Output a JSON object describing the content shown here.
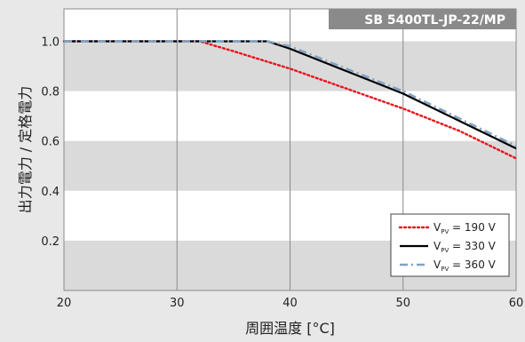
{
  "chart_data": {
    "type": "line",
    "badge": "SB 5400TL-JP-22/MP",
    "xlabel": "周囲温度 [°C]",
    "ylabel": "出力電力 / 定格電力",
    "xlim": [
      20,
      60
    ],
    "ylim": [
      0,
      1.13
    ],
    "x_ticks": [
      20,
      30,
      40,
      50,
      60
    ],
    "x_tick_labels": [
      "20",
      "30",
      "40",
      "50",
      "60"
    ],
    "y_ticks": [
      0.2,
      0.4,
      0.6,
      0.8,
      1.0
    ],
    "y_tick_labels": [
      "0.2",
      "0.4",
      "0.6",
      "0.8",
      "1.0"
    ],
    "grid": "vertical lines at x ticks, alternating horizontal bands",
    "legend_position": "bottom-right",
    "series": [
      {
        "name": "V_PV = 190 V",
        "legend": {
          "prefix": "V",
          "subscript": "PV",
          "suffix": " = 190 V"
        },
        "color": "#e8141c",
        "style": "dotted",
        "x": [
          20,
          32,
          35,
          40,
          45,
          50,
          55,
          60
        ],
        "y": [
          1.0,
          1.0,
          0.96,
          0.89,
          0.81,
          0.73,
          0.64,
          0.53
        ]
      },
      {
        "name": "V_PV = 330 V",
        "legend": {
          "prefix": "V",
          "subscript": "PV",
          "suffix": " = 330 V"
        },
        "color": "#000000",
        "style": "solid",
        "x": [
          20,
          38,
          40,
          45,
          50,
          55,
          60
        ],
        "y": [
          1.0,
          1.0,
          0.97,
          0.88,
          0.79,
          0.68,
          0.57
        ]
      },
      {
        "name": "V_PV = 360 V",
        "legend": {
          "prefix": "V",
          "subscript": "PV",
          "suffix": " = 360 V"
        },
        "color": "#7fa2c4",
        "style": "dashdot",
        "x": [
          20,
          38,
          40,
          45,
          50,
          55,
          60
        ],
        "y": [
          1.0,
          1.0,
          0.98,
          0.89,
          0.8,
          0.69,
          0.58
        ]
      }
    ]
  }
}
